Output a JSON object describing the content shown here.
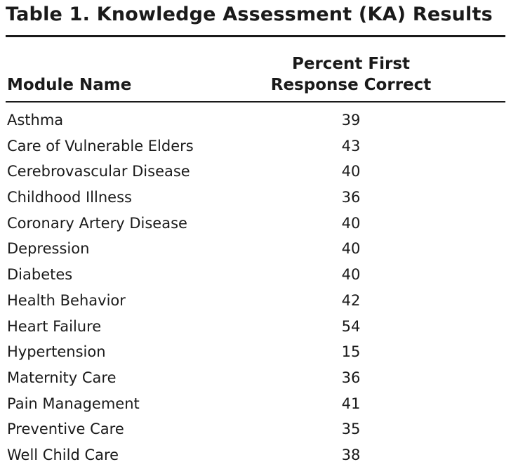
{
  "table": {
    "title": "Table 1. Knowledge Assessment (KA) Results",
    "columns": {
      "module": "Module Name",
      "percent_line1": "Percent First",
      "percent_line2": "Response Correct"
    },
    "rows": [
      {
        "module": "Asthma",
        "percent": "39"
      },
      {
        "module": "Care of Vulnerable Elders",
        "percent": "43"
      },
      {
        "module": "Cerebrovascular Disease",
        "percent": "40"
      },
      {
        "module": "Childhood Illness",
        "percent": "36"
      },
      {
        "module": "Coronary Artery Disease",
        "percent": "40"
      },
      {
        "module": "Depression",
        "percent": "40"
      },
      {
        "module": "Diabetes",
        "percent": "40"
      },
      {
        "module": "Health Behavior",
        "percent": "42"
      },
      {
        "module": "Heart Failure",
        "percent": "54"
      },
      {
        "module": "Hypertension",
        "percent": "15"
      },
      {
        "module": "Maternity Care",
        "percent": "36"
      },
      {
        "module": "Pain Management",
        "percent": "41"
      },
      {
        "module": "Preventive Care",
        "percent": "35"
      },
      {
        "module": "Well Child Care",
        "percent": "38"
      }
    ]
  }
}
